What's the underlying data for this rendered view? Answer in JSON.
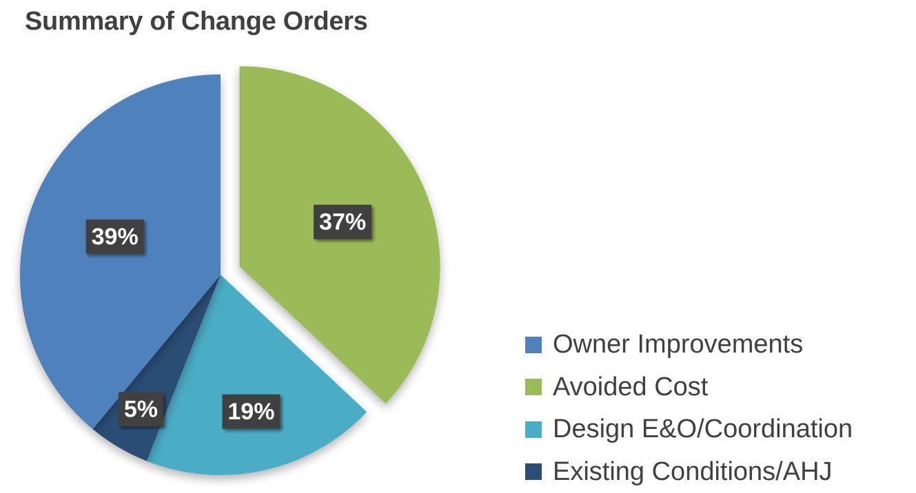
{
  "chart_data": {
    "type": "pie",
    "title": "Summary of Change Orders",
    "exploded_slice": "Avoided Cost",
    "legend_position": "bottom-right",
    "slices": [
      {
        "name": "Avoided Cost",
        "value": 37,
        "label": "37%",
        "color": "#9BBB59"
      },
      {
        "name": "Design E&O/Coordination",
        "value": 19,
        "label": "19%",
        "color": "#4BACC6"
      },
      {
        "name": "Existing Conditions/AHJ",
        "value": 5,
        "label": "5%",
        "color": "#2C4D75"
      },
      {
        "name": "Owner Improvements",
        "value": 39,
        "label": "39%",
        "color": "#4F81BD"
      }
    ],
    "legend": [
      {
        "name": "Owner Improvements",
        "color": "#4F81BD"
      },
      {
        "name": "Avoided Cost",
        "color": "#9BBB59"
      },
      {
        "name": "Design E&O/Coordination",
        "color": "#4BACC6"
      },
      {
        "name": "Existing Conditions/AHJ",
        "color": "#2C4D75"
      }
    ],
    "label_box_color": "#404040"
  }
}
